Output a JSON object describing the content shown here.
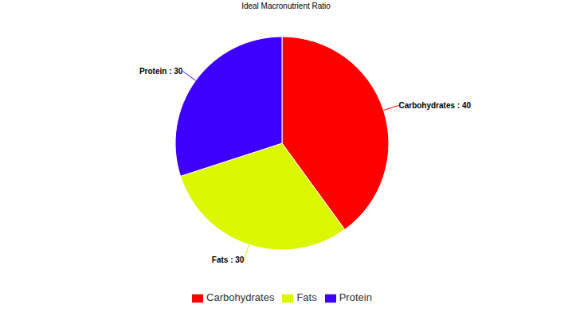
{
  "chart_data": {
    "type": "pie",
    "title": "Ideal Macronutrient Ratio",
    "categories": [
      "Carbohydrates",
      "Fats",
      "Protein"
    ],
    "values": [
      40,
      30,
      30
    ],
    "value_labels": [
      "Carbohydrates : 40",
      "Fats : 30",
      "Protein : 30"
    ],
    "colors": [
      "#ff0000",
      "#dbf700",
      "#3d00ff"
    ],
    "data_labels": true,
    "legend": "bottom"
  }
}
